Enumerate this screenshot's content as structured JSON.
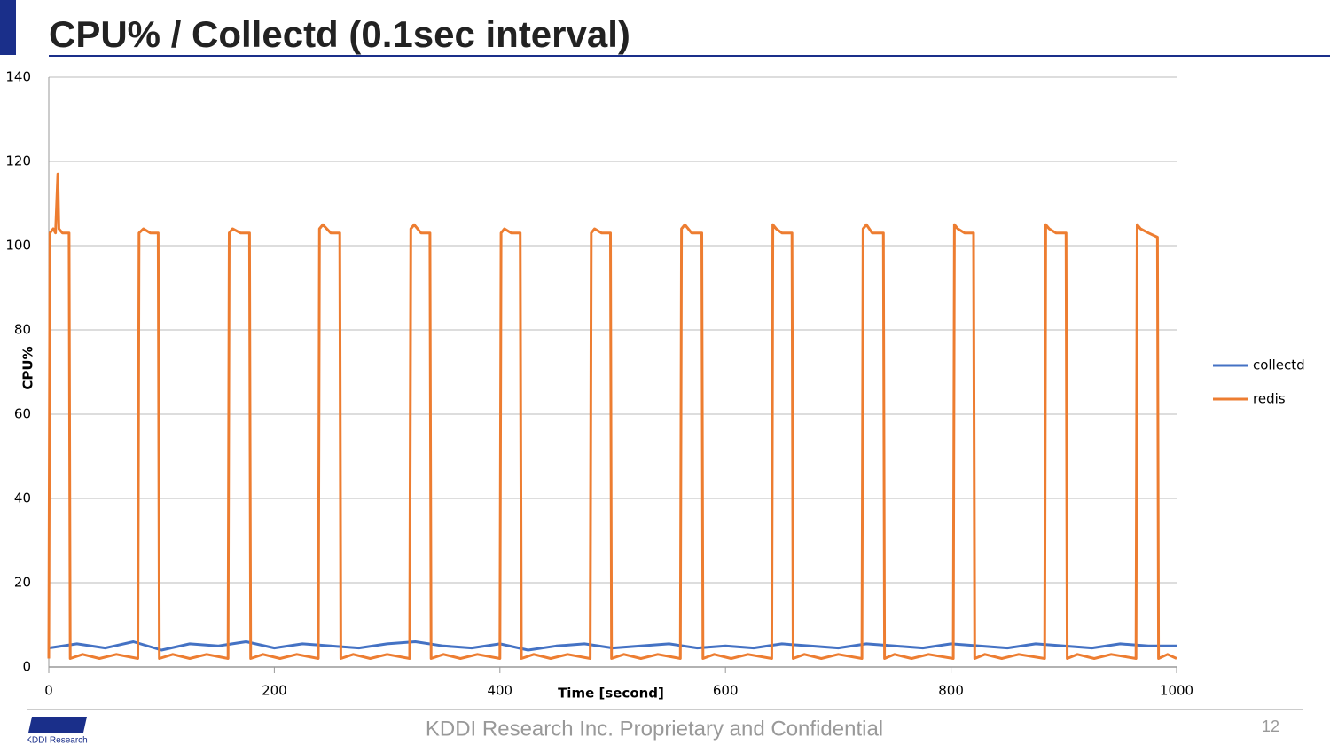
{
  "slide": {
    "title": "CPU% / Collectd (0.1sec interval)",
    "footer": "KDDI Research Inc. Proprietary and Confidential",
    "page_number": "12",
    "logo_text": "KDDI Research"
  },
  "chart_data": {
    "type": "line",
    "x_label": "Time [second]",
    "y_label": "CPU%",
    "xlim": [
      0,
      1000
    ],
    "xticks": [
      0,
      200,
      400,
      600,
      800,
      1000
    ],
    "ylim": [
      0,
      140
    ],
    "yticks": [
      0,
      20,
      40,
      60,
      80,
      100,
      120,
      140
    ],
    "grid": true,
    "legend": "right",
    "series": [
      {
        "name": "collectd",
        "color": "#4472c4",
        "x": [
          0,
          25,
          50,
          75,
          100,
          125,
          150,
          175,
          200,
          225,
          250,
          275,
          300,
          325,
          350,
          375,
          400,
          425,
          450,
          475,
          500,
          525,
          550,
          575,
          600,
          625,
          650,
          675,
          700,
          725,
          750,
          775,
          800,
          825,
          850,
          875,
          900,
          925,
          950,
          975,
          1000
        ],
        "values": [
          4.5,
          5.5,
          4.5,
          6,
          4,
          5.5,
          5,
          6,
          4.5,
          5.5,
          5,
          4.5,
          5.5,
          6,
          5,
          4.5,
          5.5,
          4,
          5,
          5.5,
          4.5,
          5,
          5.5,
          4.5,
          5,
          4.5,
          5.5,
          5,
          4.5,
          5.5,
          5,
          4.5,
          5.5,
          5,
          4.5,
          5.5,
          5,
          4.5,
          5.5,
          5,
          5
        ]
      },
      {
        "name": "redis",
        "color": "#ed7d31",
        "x": [
          0,
          1,
          4,
          6,
          8,
          9,
          12,
          18,
          19,
          30,
          45,
          60,
          79,
          80,
          84,
          90,
          97,
          98,
          110,
          125,
          140,
          159,
          160,
          163,
          170,
          178,
          179,
          190,
          205,
          220,
          239,
          240,
          243,
          250,
          258,
          259,
          270,
          285,
          300,
          320,
          321,
          324,
          330,
          338,
          339,
          350,
          365,
          380,
          400,
          401,
          404,
          410,
          418,
          419,
          430,
          445,
          460,
          480,
          481,
          484,
          490,
          498,
          499,
          510,
          525,
          540,
          560,
          561,
          564,
          570,
          579,
          580,
          590,
          605,
          620,
          641,
          642,
          645,
          650,
          659,
          660,
          670,
          685,
          700,
          721,
          722,
          725,
          730,
          740,
          741,
          750,
          765,
          780,
          802,
          803,
          806,
          812,
          820,
          821,
          830,
          845,
          860,
          883,
          884,
          887,
          893,
          902,
          903,
          912,
          927,
          942,
          964,
          965,
          968,
          975,
          983,
          984,
          992,
          1000
        ],
        "values": [
          2,
          103,
          104,
          103,
          117,
          104,
          103,
          103,
          2,
          3,
          2,
          3,
          2,
          103,
          104,
          103,
          103,
          2,
          3,
          2,
          3,
          2,
          103,
          104,
          103,
          103,
          2,
          3,
          2,
          3,
          2,
          104,
          105,
          103,
          103,
          2,
          3,
          2,
          3,
          2,
          104,
          105,
          103,
          103,
          2,
          3,
          2,
          3,
          2,
          103,
          104,
          103,
          103,
          2,
          3,
          2,
          3,
          2,
          103,
          104,
          103,
          103,
          2,
          3,
          2,
          3,
          2,
          104,
          105,
          103,
          103,
          2,
          3,
          2,
          3,
          2,
          105,
          104,
          103,
          103,
          2,
          3,
          2,
          3,
          2,
          104,
          105,
          103,
          103,
          2,
          3,
          2,
          3,
          2,
          105,
          104,
          103,
          103,
          2,
          3,
          2,
          3,
          2,
          105,
          104,
          103,
          103,
          2,
          3,
          2,
          3,
          2,
          105,
          104,
          103,
          102,
          2,
          3,
          2
        ]
      }
    ]
  }
}
